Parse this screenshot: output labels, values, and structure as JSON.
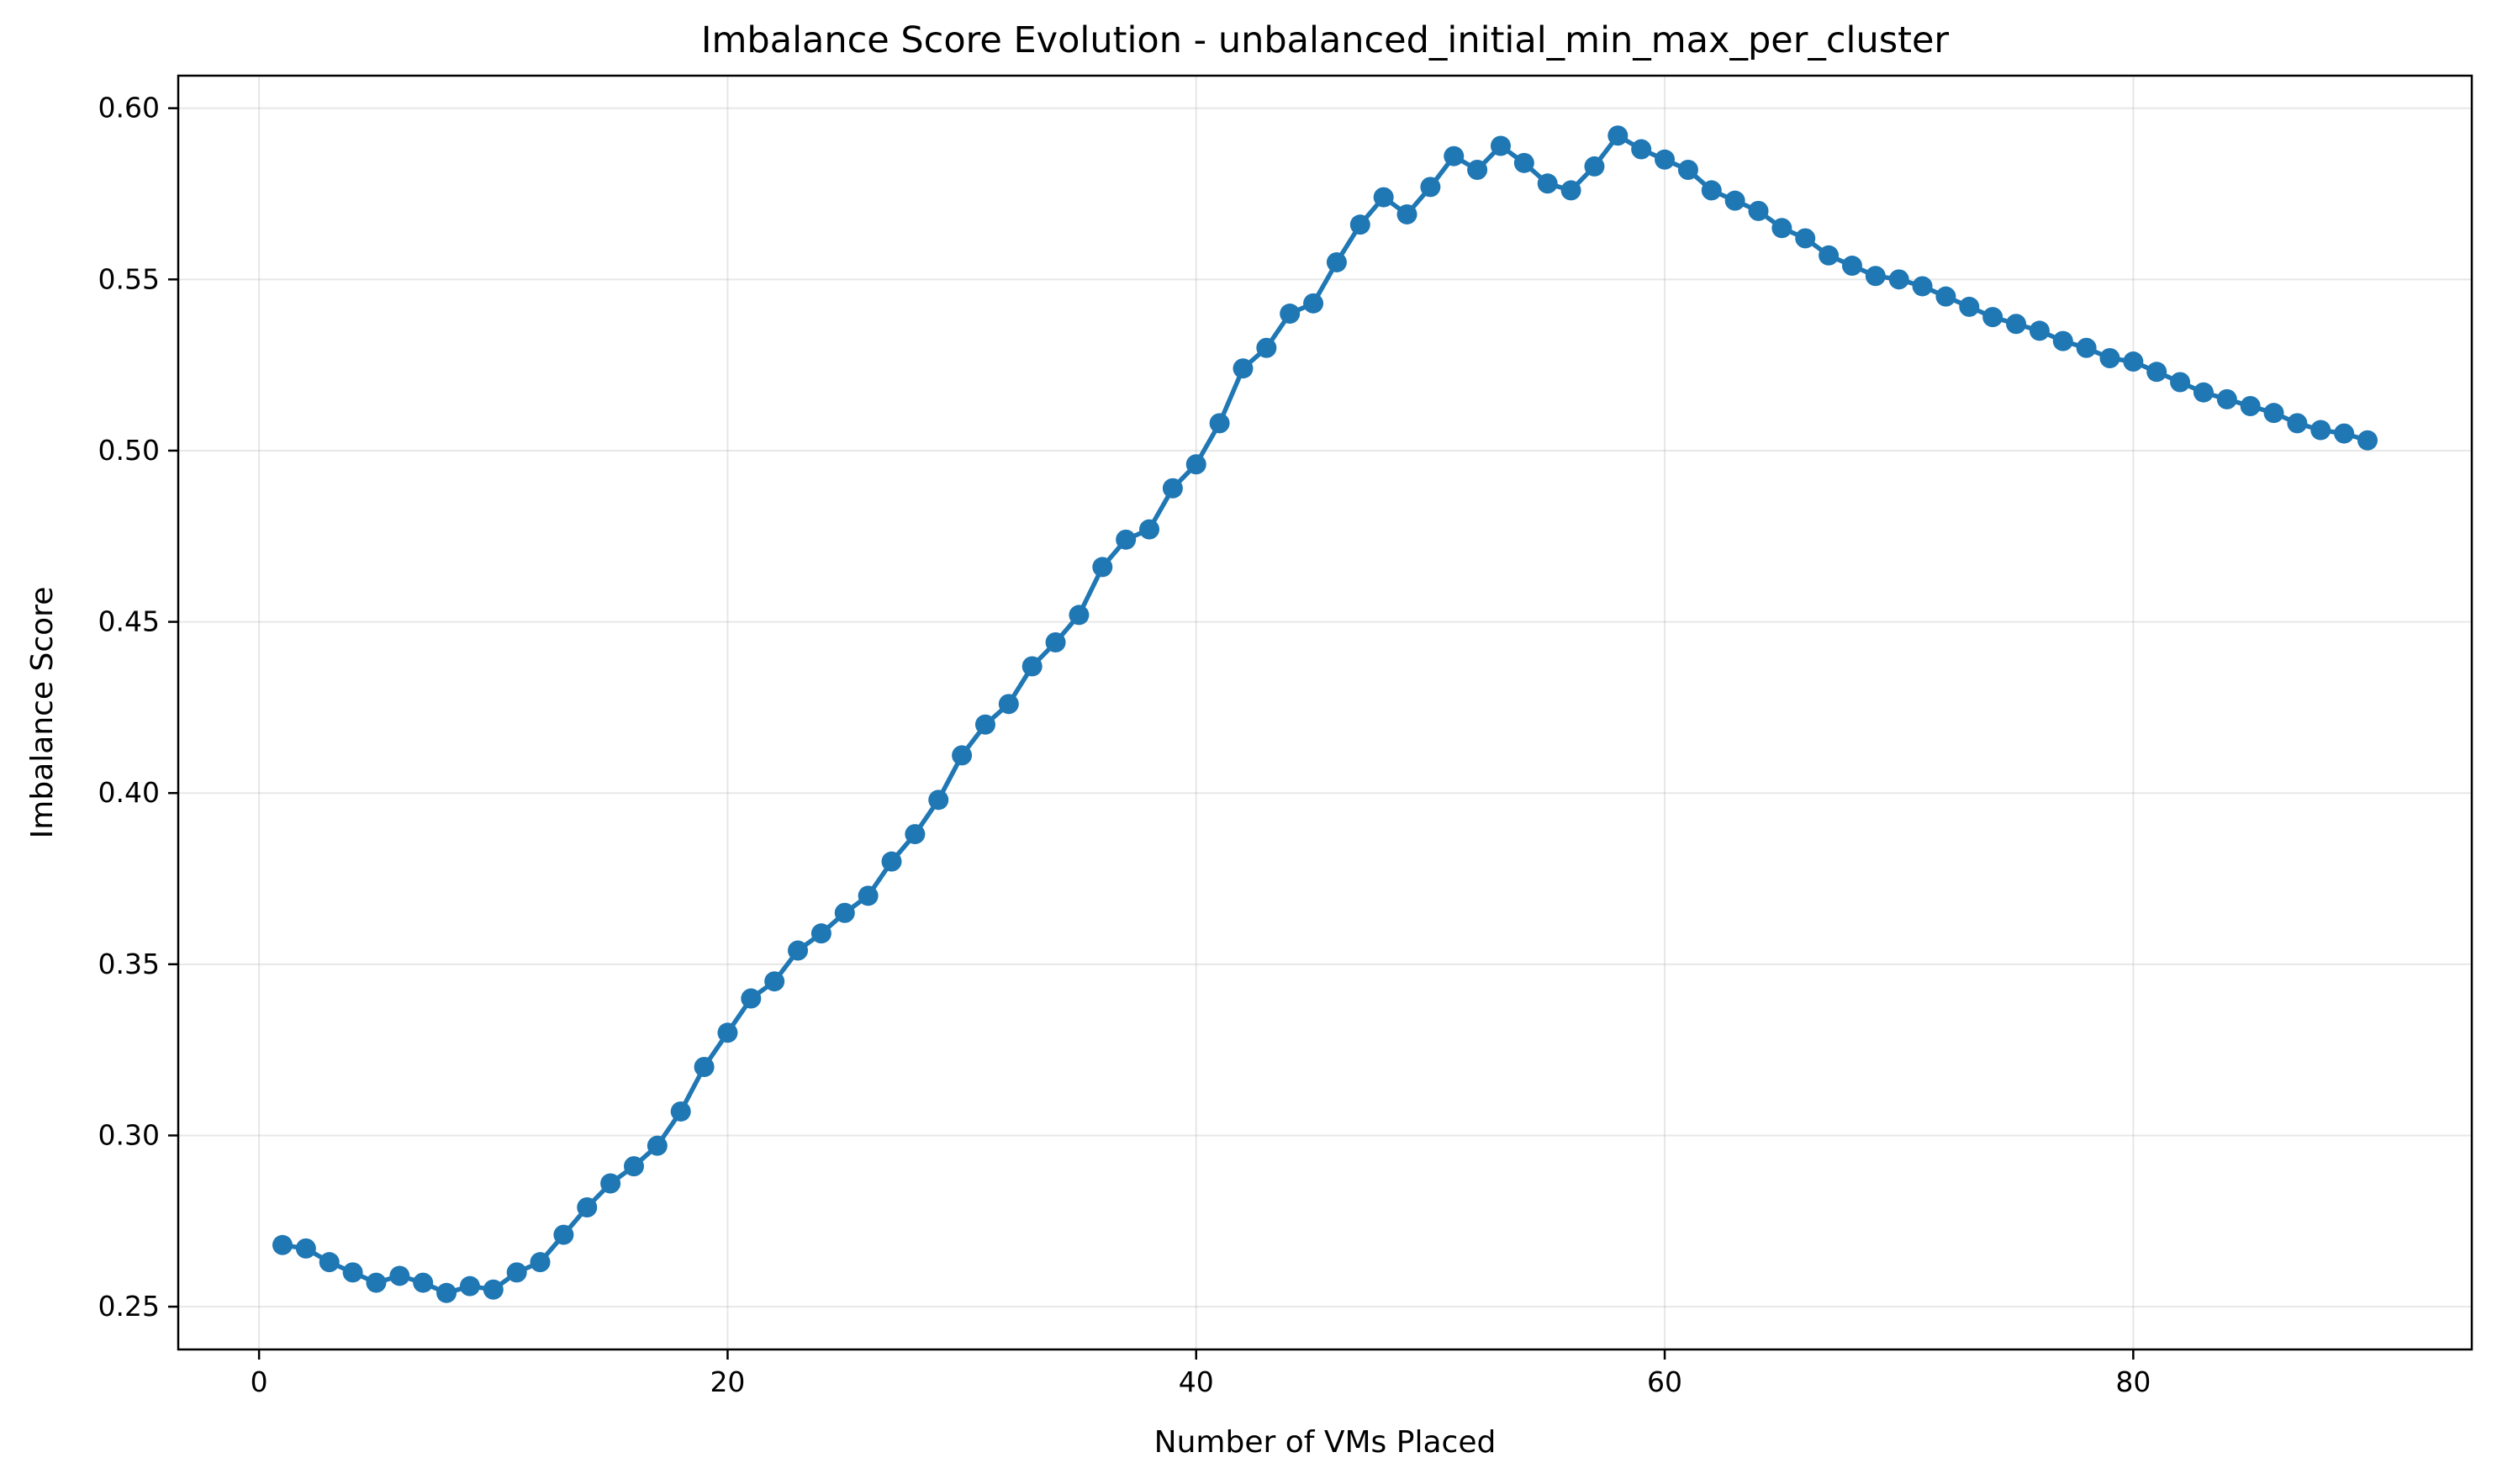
{
  "chart_data": {
    "type": "line",
    "title": "Imbalance Score Evolution - unbalanced_initial_min_max_per_cluster",
    "xlabel": "Number of VMs Placed",
    "ylabel": "Imbalance Score",
    "xlim": [
      -3.45,
      94.45
    ],
    "ylim": [
      0.2375,
      0.6095
    ],
    "xticks": [
      0,
      20,
      40,
      60,
      80
    ],
    "yticks": [
      0.25,
      0.3,
      0.35,
      0.4,
      0.45,
      0.5,
      0.55,
      0.6
    ],
    "xtick_labels": [
      "0",
      "20",
      "40",
      "60",
      "80"
    ],
    "ytick_labels": [
      "0.25",
      "0.30",
      "0.35",
      "0.40",
      "0.45",
      "0.50",
      "0.55",
      "0.60"
    ],
    "grid": true,
    "marker": "circle",
    "color": "#1f77b4",
    "x": [
      1,
      2,
      3,
      4,
      5,
      6,
      7,
      8,
      9,
      10,
      11,
      12,
      13,
      14,
      15,
      16,
      17,
      18,
      19,
      20,
      21,
      22,
      23,
      24,
      25,
      26,
      27,
      28,
      29,
      30,
      31,
      32,
      33,
      34,
      35,
      36,
      37,
      38,
      39,
      40,
      41,
      42,
      43,
      44,
      45,
      46,
      47,
      48,
      49,
      50,
      51,
      52,
      53,
      54,
      55,
      56,
      57,
      58,
      59,
      60,
      61,
      62,
      63,
      64,
      65,
      66,
      67,
      68,
      69,
      70,
      71,
      72,
      73,
      74,
      75,
      76,
      77,
      78,
      79,
      80,
      81,
      82,
      83,
      84,
      85,
      86,
      87,
      88,
      89,
      90
    ],
    "y": [
      0.268,
      0.267,
      0.263,
      0.26,
      0.257,
      0.259,
      0.257,
      0.254,
      0.256,
      0.255,
      0.26,
      0.263,
      0.271,
      0.279,
      0.286,
      0.291,
      0.297,
      0.307,
      0.32,
      0.33,
      0.34,
      0.345,
      0.354,
      0.359,
      0.365,
      0.37,
      0.38,
      0.388,
      0.398,
      0.411,
      0.42,
      0.426,
      0.437,
      0.444,
      0.452,
      0.466,
      0.474,
      0.477,
      0.489,
      0.496,
      0.508,
      0.524,
      0.53,
      0.54,
      0.543,
      0.555,
      0.566,
      0.574,
      0.569,
      0.577,
      0.586,
      0.582,
      0.589,
      0.584,
      0.578,
      0.576,
      0.583,
      0.592,
      0.588,
      0.585,
      0.582,
      0.576,
      0.573,
      0.57,
      0.565,
      0.562,
      0.557,
      0.554,
      0.551,
      0.55,
      0.548,
      0.545,
      0.542,
      0.539,
      0.537,
      0.535,
      0.532,
      0.53,
      0.527,
      0.526,
      0.523,
      0.52,
      0.517,
      0.515,
      0.513,
      0.511,
      0.508,
      0.506,
      0.505,
      0.503
    ]
  }
}
